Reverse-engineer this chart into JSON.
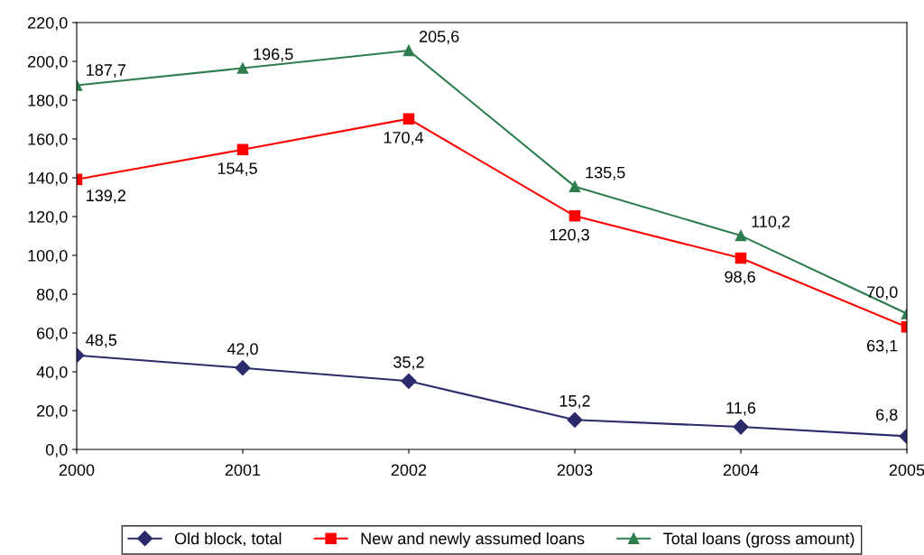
{
  "chart_data": {
    "type": "line",
    "x": [
      2000,
      2001,
      2002,
      2003,
      2004,
      2005
    ],
    "series": [
      {
        "name": "Old block, total",
        "color": "#2b2b6b",
        "marker": "diamond",
        "values": [
          48.5,
          42.0,
          35.2,
          15.2,
          11.6,
          6.8
        ],
        "value_labels": [
          "48,5",
          "42,0",
          "35,2",
          "15,2",
          "11,6",
          "6,8"
        ]
      },
      {
        "name": "New and newly assumed loans",
        "color": "#ff0000",
        "marker": "square",
        "values": [
          139.2,
          154.5,
          170.4,
          120.3,
          98.6,
          63.1
        ],
        "value_labels": [
          "139,2",
          "154,5",
          "170,4",
          "120,3",
          "98,6",
          "63,1"
        ]
      },
      {
        "name": "Total loans (gross amount)",
        "color": "#2e7d4f",
        "marker": "triangle",
        "values": [
          187.7,
          196.5,
          205.6,
          135.5,
          110.2,
          70.0
        ],
        "value_labels": [
          "187,7",
          "196,5",
          "205,6",
          "135,5",
          "110,2",
          "70,0"
        ]
      }
    ],
    "xlim": [
      2000,
      2005
    ],
    "xticks": [
      2000,
      2001,
      2002,
      2003,
      2004,
      2005
    ],
    "ylim": [
      0,
      220
    ],
    "yticks": [
      {
        "value": 0,
        "label": "0,0"
      },
      {
        "value": 20,
        "label": "20,0"
      },
      {
        "value": 40,
        "label": "40,0"
      },
      {
        "value": 60,
        "label": "60,0"
      },
      {
        "value": 80,
        "label": "80,0"
      },
      {
        "value": 100,
        "label": "100,0"
      },
      {
        "value": 120,
        "label": "120,0"
      },
      {
        "value": 140,
        "label": "140,0"
      },
      {
        "value": 160,
        "label": "160,0"
      },
      {
        "value": 180,
        "label": "180,0"
      },
      {
        "value": 200,
        "label": "200,0"
      },
      {
        "value": 220,
        "label": "220,0"
      }
    ],
    "grid": false,
    "legend": "bottom"
  }
}
